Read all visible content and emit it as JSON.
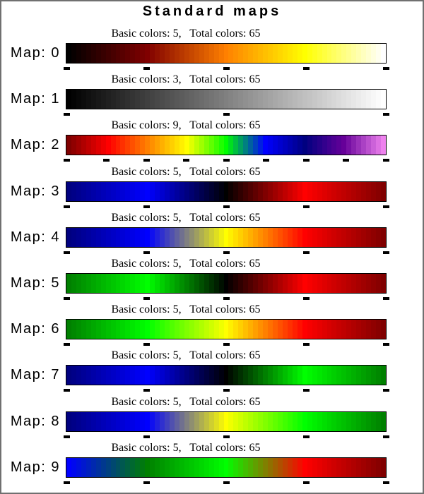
{
  "chart_data": {
    "type": "heatmap",
    "title": "Standard maps",
    "layout": {
      "rows": 10,
      "grid": false,
      "legend": "none",
      "note": "each bar shows total_colors discrete cells linearly interpolated between evenly spaced basic color stops; tick marks under each bar sit at the basic color positions"
    },
    "maps": [
      {
        "label": "Map: 0",
        "caption": "Basic colors: 5,   Total colors: 65",
        "basic_colors": 5,
        "total_colors": 65,
        "stops": [
          "#000000",
          "#800000",
          "#FF8000",
          "#FFFF00",
          "#FFFFFF"
        ]
      },
      {
        "label": "Map: 1",
        "caption": "Basic colors: 3,   Total colors: 65",
        "basic_colors": 3,
        "total_colors": 65,
        "stops": [
          "#000000",
          "#808080",
          "#FFFFFF"
        ]
      },
      {
        "label": "Map: 2",
        "caption": "Basic colors: 9,   Total colors: 65",
        "basic_colors": 9,
        "total_colors": 65,
        "stops": [
          "#800000",
          "#FF0000",
          "#FF8000",
          "#FFFF00",
          "#00FF00",
          "#0000FF",
          "#000080",
          "#660099",
          "#EE82EE"
        ]
      },
      {
        "label": "Map: 3",
        "caption": "Basic colors: 5,   Total colors: 65",
        "basic_colors": 5,
        "total_colors": 65,
        "stops": [
          "#000080",
          "#0000FF",
          "#000000",
          "#FF0000",
          "#800000"
        ]
      },
      {
        "label": "Map: 4",
        "caption": "Basic colors: 5,   Total colors: 65",
        "basic_colors": 5,
        "total_colors": 65,
        "stops": [
          "#000080",
          "#0000FF",
          "#FFFF00",
          "#FF0000",
          "#800000"
        ]
      },
      {
        "label": "Map: 5",
        "caption": "Basic colors: 5,   Total colors: 65",
        "basic_colors": 5,
        "total_colors": 65,
        "stops": [
          "#008000",
          "#00FF00",
          "#000000",
          "#FF0000",
          "#800000"
        ]
      },
      {
        "label": "Map: 6",
        "caption": "Basic colors: 5,   Total colors: 65",
        "basic_colors": 5,
        "total_colors": 65,
        "stops": [
          "#008000",
          "#00FF00",
          "#FFFF00",
          "#FF0000",
          "#800000"
        ]
      },
      {
        "label": "Map: 7",
        "caption": "Basic colors: 5,   Total colors: 65",
        "basic_colors": 5,
        "total_colors": 65,
        "stops": [
          "#000080",
          "#0000FF",
          "#000000",
          "#00FF00",
          "#008000"
        ]
      },
      {
        "label": "Map: 8",
        "caption": "Basic colors: 5,   Total colors: 65",
        "basic_colors": 5,
        "total_colors": 65,
        "stops": [
          "#000080",
          "#0000FF",
          "#FFFF00",
          "#00FF00",
          "#008000"
        ]
      },
      {
        "label": "Map: 9",
        "caption": "Basic colors: 5,   Total colors: 65",
        "basic_colors": 5,
        "total_colors": 65,
        "stops": [
          "#0000FF",
          "#008000",
          "#00FF00",
          "#FF0000",
          "#800000"
        ]
      }
    ]
  },
  "colors": {
    "frame_border": "#707070",
    "bar_border": "#000000",
    "tick": "#000000",
    "text": "#000000",
    "background": "#FFFFFF"
  }
}
